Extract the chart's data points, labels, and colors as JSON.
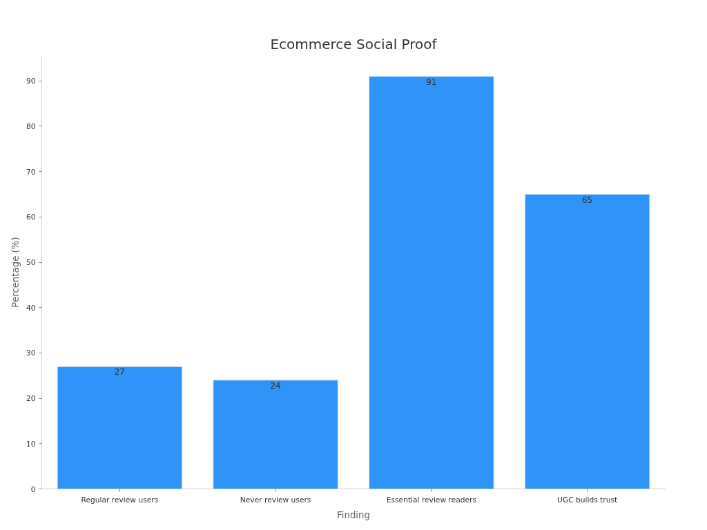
{
  "chart_data": {
    "type": "bar",
    "title": "Ecommerce Social Proof",
    "xlabel": "Finding",
    "ylabel": "Percentage (%)",
    "categories": [
      "Regular review users",
      "Never review users",
      "Essential review readers",
      "UGC builds trust"
    ],
    "values": [
      27,
      24,
      91,
      65
    ],
    "color": "#2f93f8",
    "ylim": [
      0,
      95.6
    ],
    "yticks": [
      0,
      10,
      20,
      30,
      40,
      50,
      60,
      70,
      80,
      90
    ],
    "data_labels": true,
    "grid": false
  }
}
